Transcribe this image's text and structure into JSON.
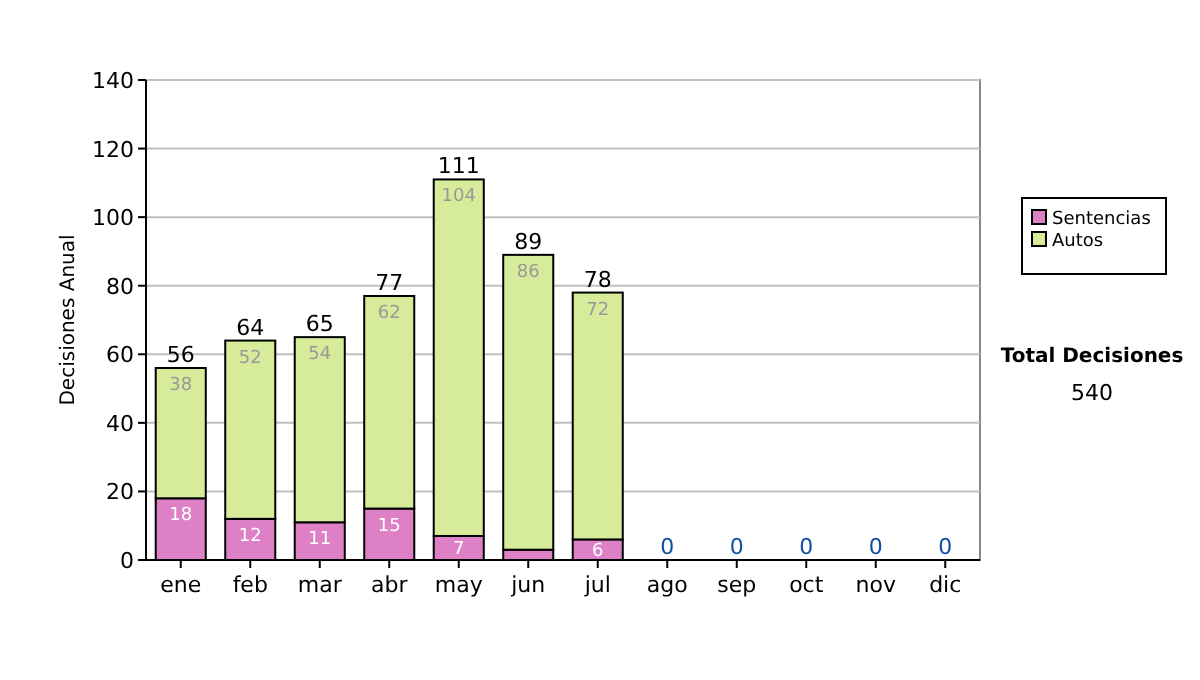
{
  "chart_data": {
    "type": "bar",
    "stacked": true,
    "ylabel": "Decisiones Anual",
    "categories": [
      "ene",
      "feb",
      "mar",
      "abr",
      "may",
      "jun",
      "jul",
      "ago",
      "sep",
      "oct",
      "nov",
      "dic"
    ],
    "series": [
      {
        "name": "Sentencias",
        "color": "#de80c6",
        "values": [
          18,
          12,
          11,
          15,
          7,
          3,
          6,
          0,
          0,
          0,
          0,
          0
        ],
        "value_labels": [
          "18",
          "12",
          "11",
          "15",
          "7",
          null,
          "6",
          null,
          null,
          null,
          null,
          null
        ]
      },
      {
        "name": "Autos",
        "color": "#d6ec9a",
        "values": [
          38,
          52,
          54,
          62,
          104,
          86,
          72,
          0,
          0,
          0,
          0,
          0
        ],
        "value_labels": [
          "38",
          "52",
          "54",
          "62",
          "104",
          "86",
          "72",
          null,
          null,
          null,
          null,
          null
        ]
      }
    ],
    "totals": [
      "56",
      "64",
      "65",
      "77",
      "111",
      "89",
      "78",
      "0",
      "0",
      "0",
      "0",
      "0"
    ],
    "ylim": [
      0,
      140
    ],
    "yticks": [
      0,
      20,
      40,
      60,
      80,
      100,
      120,
      140
    ],
    "grid": "y",
    "legend": "right",
    "annotations": [
      "Total Decisiones",
      "540"
    ]
  }
}
